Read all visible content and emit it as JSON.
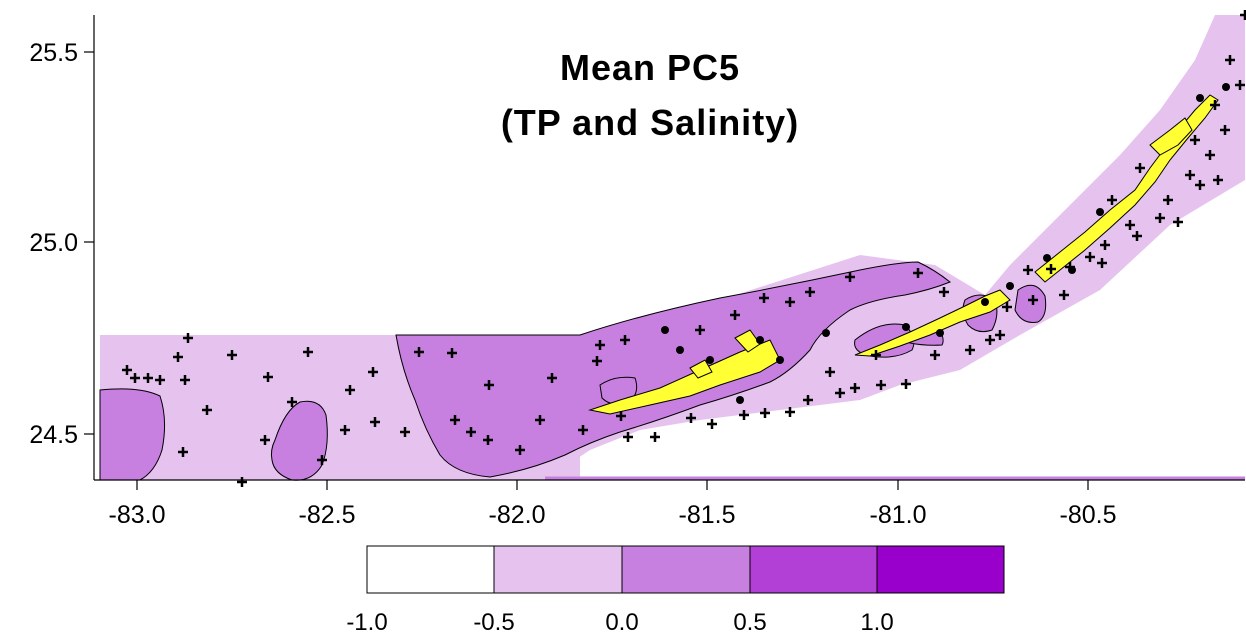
{
  "map": {
    "title_line1": "Mean PC5",
    "title_line2": "(TP and Salinity)",
    "x_ticks": [
      "-83.0",
      "-82.5",
      "-82.0",
      "-81.5",
      "-81.0",
      "-80.5"
    ],
    "y_ticks": [
      "25.5",
      "25.0",
      "24.5"
    ],
    "x_range": [
      -83.1,
      -80.1
    ],
    "y_range": [
      24.38,
      25.6
    ],
    "colors": {
      "level_neg1_to_neg05": "#ffffff",
      "level_neg05_to_0": "#e6c3ef",
      "level_0_to_05": "#c77fe0",
      "level_05_to_1": "#b23fd6",
      "level_above_1": "#9900cc",
      "land": "#ffff33",
      "station_marker": "#000000"
    }
  },
  "legend": {
    "labels": [
      "-1.0",
      "-0.5",
      "0.0",
      "0.5",
      "1.0"
    ]
  }
}
